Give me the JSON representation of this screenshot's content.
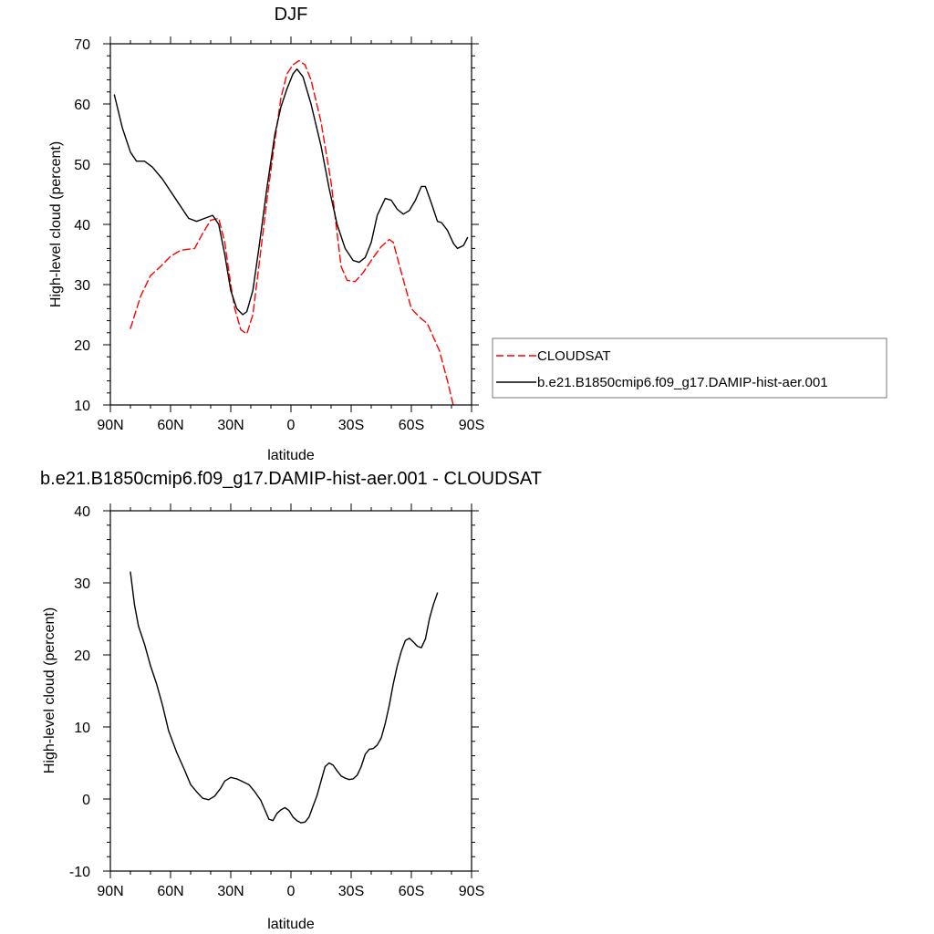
{
  "chart_data": [
    {
      "type": "line",
      "title": "DJF",
      "xlabel": "latitude",
      "ylabel": "High-level cloud (percent)",
      "xlim": [
        -90,
        90
      ],
      "ylim": [
        10,
        70
      ],
      "x_ticks": [
        -90,
        -60,
        -30,
        0,
        30,
        60,
        90
      ],
      "x_tick_labels": [
        "90N",
        "60N",
        "30N",
        "0",
        "30S",
        "60S",
        "90S"
      ],
      "y_ticks": [
        10,
        20,
        30,
        40,
        50,
        60,
        70
      ],
      "y_tick_labels": [
        "10",
        "20",
        "30",
        "40",
        "50",
        "60",
        "70"
      ],
      "legend": {
        "placement": "right",
        "labels": [
          "CLOUDSAT",
          "b.e21.B1850cmip6.f09_g17.DAMIP-hist-aer.001"
        ]
      },
      "series": [
        {
          "name": "CLOUDSAT",
          "color": "#ff0000",
          "dash": "dashed",
          "points": [
            [
              -80,
              22.7
            ],
            [
              -75,
              28.0
            ],
            [
              -70,
              31.5
            ],
            [
              -65,
              33.0
            ],
            [
              -60,
              34.7
            ],
            [
              -55,
              35.7
            ],
            [
              -48,
              36.0
            ],
            [
              -44,
              38.5
            ],
            [
              -40,
              40.7
            ],
            [
              -36,
              41.0
            ],
            [
              -33,
              37.0
            ],
            [
              -30,
              30.0
            ],
            [
              -28,
              26.0
            ],
            [
              -25,
              22.5
            ],
            [
              -22,
              21.8
            ],
            [
              -19,
              25.0
            ],
            [
              -16,
              33.0
            ],
            [
              -12,
              44.0
            ],
            [
              -8,
              54.0
            ],
            [
              -5,
              61.0
            ],
            [
              -2,
              65.0
            ],
            [
              1,
              66.5
            ],
            [
              4,
              67.2
            ],
            [
              7,
              66.5
            ],
            [
              10,
              64.0
            ],
            [
              15,
              57.0
            ],
            [
              20,
              47.0
            ],
            [
              23,
              38.5
            ],
            [
              25,
              33.0
            ],
            [
              28,
              30.7
            ],
            [
              32,
              30.5
            ],
            [
              36,
              32.0
            ],
            [
              41,
              34.5
            ],
            [
              45,
              36.3
            ],
            [
              49,
              37.5
            ],
            [
              51,
              37.0
            ],
            [
              55,
              32.0
            ],
            [
              60,
              26.0
            ],
            [
              64,
              24.6
            ],
            [
              68,
              23.5
            ],
            [
              74,
              19.0
            ],
            [
              78,
              14.0
            ],
            [
              81,
              9.8
            ]
          ]
        },
        {
          "name": "b.e21.B1850cmip6.f09_g17.DAMIP-hist-aer.001",
          "color": "#000000",
          "dash": "solid",
          "points": [
            [
              -88,
              61.5
            ],
            [
              -84,
              56.0
            ],
            [
              -80,
              52.0
            ],
            [
              -77,
              50.5
            ],
            [
              -73,
              50.5
            ],
            [
              -69,
              49.5
            ],
            [
              -64,
              47.5
            ],
            [
              -58,
              44.5
            ],
            [
              -51,
              41.0
            ],
            [
              -47,
              40.5
            ],
            [
              -43,
              41.0
            ],
            [
              -39,
              41.5
            ],
            [
              -36,
              40.0
            ],
            [
              -33,
              35.0
            ],
            [
              -30,
              29.0
            ],
            [
              -27,
              26.0
            ],
            [
              -24,
              25.0
            ],
            [
              -22,
              25.5
            ],
            [
              -19,
              29.0
            ],
            [
              -16,
              36.0
            ],
            [
              -12,
              46.0
            ],
            [
              -8,
              55.0
            ],
            [
              -5,
              59.5
            ],
            [
              -2,
              62.5
            ],
            [
              1,
              65.0
            ],
            [
              3,
              65.8
            ],
            [
              6,
              64.5
            ],
            [
              10,
              60.0
            ],
            [
              15,
              53.0
            ],
            [
              19,
              46.0
            ],
            [
              23,
              40.0
            ],
            [
              27,
              36.0
            ],
            [
              31,
              34.0
            ],
            [
              34,
              33.7
            ],
            [
              37,
              34.5
            ],
            [
              40,
              37.0
            ],
            [
              43,
              41.5
            ],
            [
              47,
              44.3
            ],
            [
              50,
              44.0
            ],
            [
              53,
              42.5
            ],
            [
              56,
              41.7
            ],
            [
              59,
              42.3
            ],
            [
              62,
              44.0
            ],
            [
              65,
              46.3
            ],
            [
              67,
              46.3
            ],
            [
              70,
              43.5
            ],
            [
              73,
              40.5
            ],
            [
              75,
              40.3
            ],
            [
              78,
              39.0
            ],
            [
              81,
              36.8
            ],
            [
              83,
              36.0
            ],
            [
              86,
              36.5
            ],
            [
              88,
              37.8
            ]
          ]
        }
      ]
    },
    {
      "type": "line",
      "title": "b.e21.B1850cmip6.f09_g17.DAMIP-hist-aer.001 - CLOUDSAT",
      "xlabel": "latitude",
      "ylabel": "High-level cloud (percent)",
      "xlim": [
        -90,
        90
      ],
      "ylim": [
        -10,
        40
      ],
      "x_ticks": [
        -90,
        -60,
        -30,
        0,
        30,
        60,
        90
      ],
      "x_tick_labels": [
        "90N",
        "60N",
        "30N",
        "0",
        "30S",
        "60S",
        "90S"
      ],
      "y_ticks": [
        -10,
        0,
        10,
        20,
        30,
        40
      ],
      "y_tick_labels": [
        "-10",
        "0",
        "10",
        "20",
        "30",
        "40"
      ],
      "series": [
        {
          "color": "#000000",
          "dash": "solid",
          "points": [
            [
              -80,
              31.5
            ],
            [
              -78,
              27.0
            ],
            [
              -76,
              24.0
            ],
            [
              -73,
              21.5
            ],
            [
              -70,
              18.5
            ],
            [
              -67,
              16.0
            ],
            [
              -64,
              13.0
            ],
            [
              -61,
              9.5
            ],
            [
              -57,
              6.5
            ],
            [
              -53,
              4.0
            ],
            [
              -50,
              2.0
            ],
            [
              -47,
              1.0
            ],
            [
              -44,
              0.1
            ],
            [
              -41,
              -0.1
            ],
            [
              -38,
              0.4
            ],
            [
              -35,
              1.5
            ],
            [
              -33,
              2.5
            ],
            [
              -30,
              3.0
            ],
            [
              -27,
              2.8
            ],
            [
              -24,
              2.4
            ],
            [
              -21,
              2.0
            ],
            [
              -18,
              1.0
            ],
            [
              -15,
              -0.2
            ],
            [
              -13,
              -1.5
            ],
            [
              -11,
              -2.8
            ],
            [
              -9,
              -3.0
            ],
            [
              -7,
              -2.0
            ],
            [
              -5,
              -1.5
            ],
            [
              -3,
              -1.2
            ],
            [
              -1,
              -1.6
            ],
            [
              1,
              -2.5
            ],
            [
              3,
              -3.0
            ],
            [
              5,
              -3.3
            ],
            [
              7,
              -3.2
            ],
            [
              9,
              -2.5
            ],
            [
              11,
              -1.0
            ],
            [
              13,
              0.5
            ],
            [
              15,
              2.5
            ],
            [
              17,
              4.5
            ],
            [
              19,
              5.0
            ],
            [
              21,
              4.7
            ],
            [
              23,
              3.9
            ],
            [
              25,
              3.2
            ],
            [
              27,
              2.9
            ],
            [
              29,
              2.7
            ],
            [
              31,
              2.8
            ],
            [
              33,
              3.3
            ],
            [
              35,
              4.5
            ],
            [
              37,
              6.2
            ],
            [
              39,
              6.9
            ],
            [
              41,
              7.0
            ],
            [
              43,
              7.5
            ],
            [
              45,
              8.5
            ],
            [
              47,
              10.5
            ],
            [
              49,
              13.0
            ],
            [
              51,
              16.0
            ],
            [
              53,
              18.5
            ],
            [
              55,
              20.5
            ],
            [
              57,
              22.0
            ],
            [
              59,
              22.3
            ],
            [
              61,
              21.8
            ],
            [
              63,
              21.2
            ],
            [
              65,
              21.0
            ],
            [
              67,
              22.2
            ],
            [
              69,
              25.0
            ],
            [
              71,
              27.0
            ],
            [
              73,
              28.6
            ]
          ]
        }
      ]
    }
  ]
}
